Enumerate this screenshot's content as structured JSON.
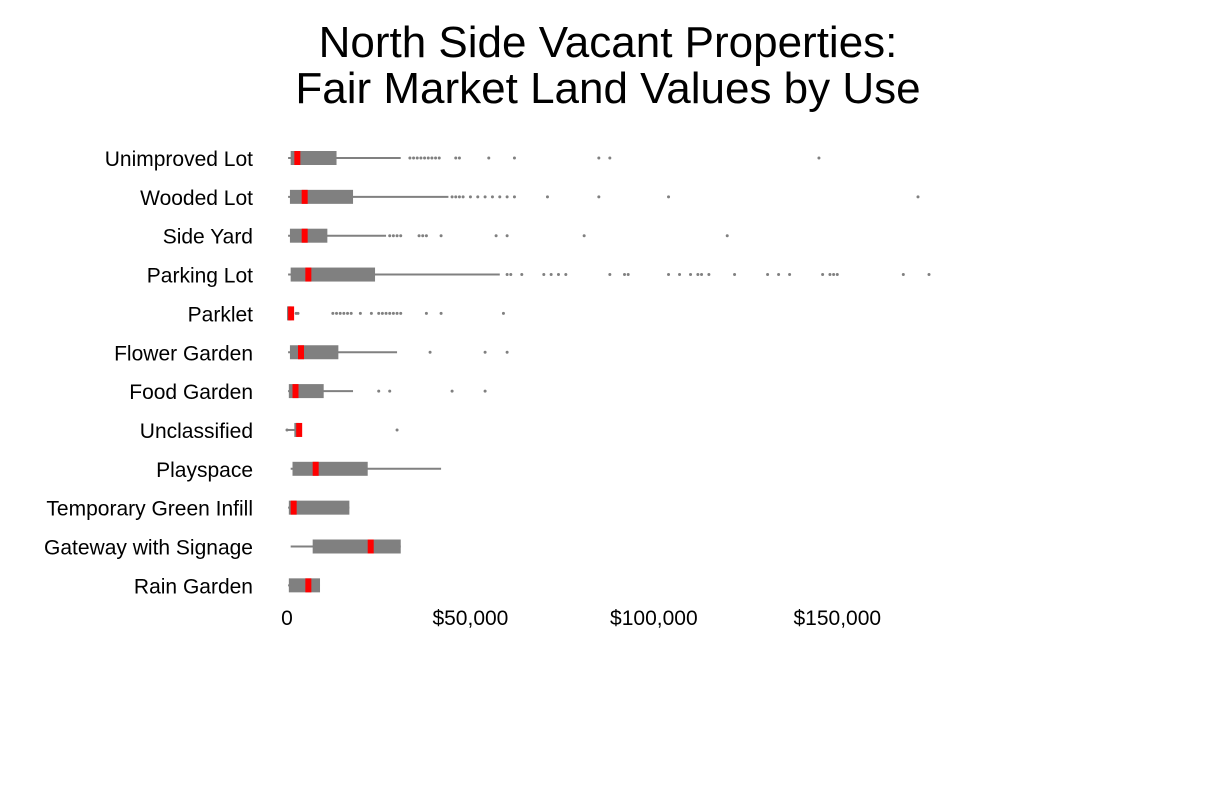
{
  "chart_data": {
    "type": "box",
    "title_lines": [
      "North Side Vacant Properties:",
      "Fair Market Land Values by Use"
    ],
    "xlabel": "",
    "ylabel": "",
    "xlim": [
      0,
      175000
    ],
    "x_ticks": [
      {
        "value": 0,
        "label": "0"
      },
      {
        "value": 50000,
        "label": "$50,000"
      },
      {
        "value": 100000,
        "label": "$100,000"
      },
      {
        "value": 150000,
        "label": "$150,000"
      }
    ],
    "colors": {
      "box": "#808080",
      "whisker": "#808080",
      "median": "#ff0000",
      "outlier": "#808080"
    },
    "categories": [
      {
        "name": "Unimproved Lot",
        "whisker_low": 300,
        "q1": 1000,
        "median": 2000,
        "q3": 13500,
        "whisker_high": 31000,
        "outliers": [
          33500,
          34500,
          35500,
          36500,
          37500,
          38500,
          39500,
          40500,
          41500,
          46000,
          47000,
          55000,
          62000,
          85000,
          88000,
          145000
        ]
      },
      {
        "name": "Wooded Lot",
        "whisker_low": 300,
        "q1": 800,
        "median": 4000,
        "q3": 18000,
        "whisker_high": 44000,
        "outliers": [
          45000,
          46000,
          47000,
          48000,
          50000,
          52000,
          54000,
          56000,
          58000,
          60000,
          62000,
          71000,
          85000,
          104000,
          172000
        ]
      },
      {
        "name": "Side Yard",
        "whisker_low": 300,
        "q1": 800,
        "median": 4000,
        "q3": 11000,
        "whisker_high": 27000,
        "outliers": [
          28000,
          29000,
          30000,
          31000,
          36000,
          37000,
          38000,
          42000,
          57000,
          60000,
          81000,
          120000
        ]
      },
      {
        "name": "Parking Lot",
        "whisker_low": 300,
        "q1": 1000,
        "median": 5000,
        "q3": 24000,
        "whisker_high": 58000,
        "outliers": [
          60000,
          61000,
          64000,
          70000,
          72000,
          74000,
          76000,
          88000,
          92000,
          93000,
          104000,
          107000,
          110000,
          112000,
          113000,
          115000,
          122000,
          131000,
          134000,
          137000,
          146000,
          148000,
          149000,
          150000,
          168000,
          175000
        ]
      },
      {
        "name": "Parklet",
        "whisker_low": 0,
        "q1": 0,
        "median": 300,
        "q3": 1200,
        "whisker_high": 1500,
        "outliers": [
          2500,
          3000,
          12500,
          13500,
          14500,
          15500,
          16500,
          17500,
          20000,
          23000,
          25000,
          26000,
          27000,
          28000,
          29000,
          30000,
          31000,
          38000,
          42000,
          59000
        ]
      },
      {
        "name": "Flower Garden",
        "whisker_low": 300,
        "q1": 800,
        "median": 3000,
        "q3": 14000,
        "whisker_high": 30000,
        "outliers": [
          39000,
          54000,
          60000
        ]
      },
      {
        "name": "Food Garden",
        "whisker_low": 300,
        "q1": 500,
        "median": 1500,
        "q3": 10000,
        "whisker_high": 18000,
        "outliers": [
          25000,
          28000,
          45000,
          54000
        ]
      },
      {
        "name": "Unclassified",
        "whisker_low": 0,
        "q1": 2000,
        "median": 2500,
        "q3": 3200,
        "whisker_high": 3200,
        "outliers": [
          0,
          30000
        ]
      },
      {
        "name": "Playspace",
        "whisker_low": 1000,
        "q1": 1500,
        "median": 7000,
        "q3": 22000,
        "whisker_high": 42000,
        "outliers": []
      },
      {
        "name": "Temporary Green Infill",
        "whisker_low": 300,
        "q1": 500,
        "median": 1000,
        "q3": 17000,
        "whisker_high": 17000,
        "outliers": []
      },
      {
        "name": "Gateway with Signage",
        "whisker_low": 1000,
        "q1": 7000,
        "median": 22000,
        "q3": 31000,
        "whisker_high": 31000,
        "outliers": []
      },
      {
        "name": "Rain Garden",
        "whisker_low": 300,
        "q1": 500,
        "median": 5000,
        "q3": 9000,
        "whisker_high": 9000,
        "outliers": []
      }
    ]
  }
}
